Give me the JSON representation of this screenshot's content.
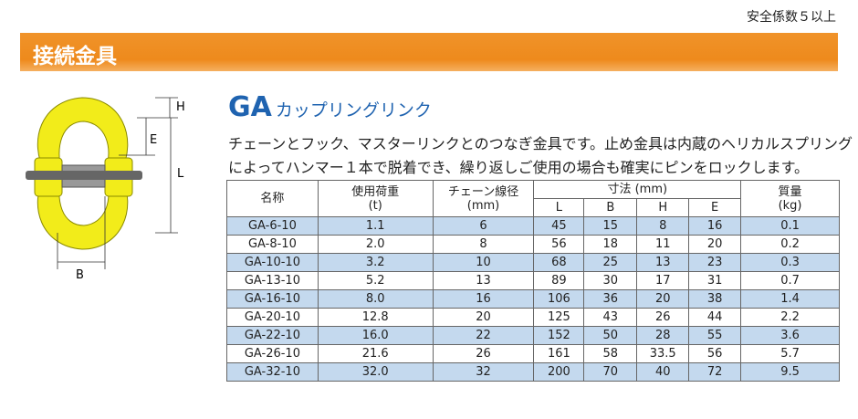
{
  "header": {
    "note": "安全係数５以上",
    "section": "接続金具"
  },
  "product": {
    "code": "GA",
    "name": "カップリングリンク",
    "description": [
      "チェーンとフック、マスターリンクとのつなぎ金具です。止め金具は内蔵のヘリカルスプリング",
      "によってハンマー１本で脱着でき、繰り返しご使用の場合も確実にピンをロックします。"
    ]
  },
  "diagram": {
    "labels": {
      "H": "H",
      "E": "E",
      "L": "L",
      "B": "B"
    }
  },
  "table": {
    "header": {
      "name": "名称",
      "load": [
        "使用荷重",
        "(t)"
      ],
      "chain": [
        "チェーン線径",
        "(mm)"
      ],
      "dims": "寸法 (mm)",
      "dim_cols": [
        "L",
        "B",
        "H",
        "E"
      ],
      "mass": [
        "質量",
        "(kg)"
      ]
    },
    "rows": [
      [
        "GA-6-10",
        "1.1",
        "6",
        "45",
        "15",
        "8",
        "16",
        "0.1"
      ],
      [
        "GA-8-10",
        "2.0",
        "8",
        "56",
        "18",
        "11",
        "20",
        "0.2"
      ],
      [
        "GA-10-10",
        "3.2",
        "10",
        "68",
        "25",
        "13",
        "23",
        "0.3"
      ],
      [
        "GA-13-10",
        "5.2",
        "13",
        "89",
        "30",
        "17",
        "31",
        "0.7"
      ],
      [
        "GA-16-10",
        "8.0",
        "16",
        "106",
        "36",
        "20",
        "38",
        "1.4"
      ],
      [
        "GA-20-10",
        "12.8",
        "20",
        "125",
        "43",
        "26",
        "44",
        "2.2"
      ],
      [
        "GA-22-10",
        "16.0",
        "22",
        "152",
        "50",
        "28",
        "55",
        "3.6"
      ],
      [
        "GA-26-10",
        "21.6",
        "26",
        "161",
        "58",
        "33.5",
        "56",
        "5.7"
      ],
      [
        "GA-32-10",
        "32.0",
        "32",
        "200",
        "70",
        "40",
        "72",
        "9.5"
      ]
    ]
  }
}
